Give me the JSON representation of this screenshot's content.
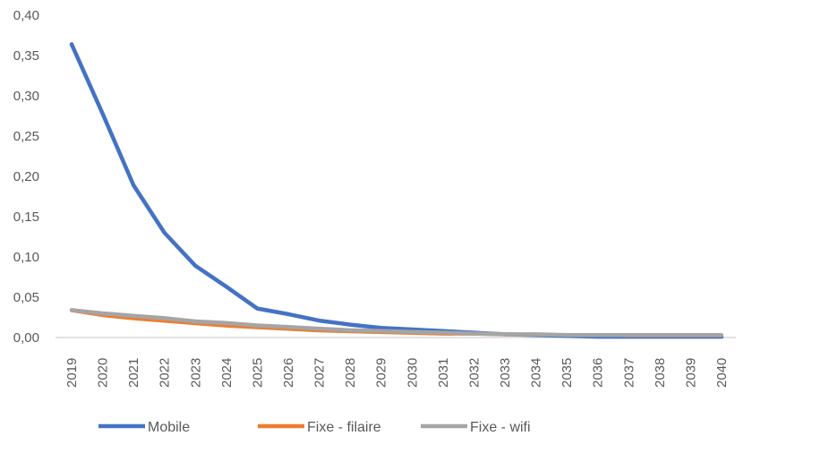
{
  "chart_data": {
    "type": "line",
    "title": "",
    "xlabel": "",
    "ylabel": "",
    "ylim": [
      0,
      0.4
    ],
    "y_ticks": [
      "0,00",
      "0,05",
      "0,10",
      "0,15",
      "0,20",
      "0,25",
      "0,30",
      "0,35",
      "0,40"
    ],
    "grid": false,
    "legend_position": "bottom",
    "categories": [
      "2019",
      "2020",
      "2021",
      "2022",
      "2023",
      "2024",
      "2025",
      "2026",
      "2027",
      "2028",
      "2029",
      "2030",
      "2031",
      "2032",
      "2033",
      "2034",
      "2035",
      "2036",
      "2037",
      "2038",
      "2039",
      "2040"
    ],
    "series": [
      {
        "name": "Mobile",
        "color": "#4472C4",
        "values": [
          0.364,
          0.278,
          0.189,
          0.13,
          0.089,
          0.063,
          0.036,
          0.029,
          0.021,
          0.016,
          0.012,
          0.01,
          0.008,
          0.006,
          0.004,
          0.003,
          0.002,
          0.001,
          0.001,
          0.001,
          0.001,
          0.001
        ]
      },
      {
        "name": "Fixe - filaire",
        "color": "#ED7D31",
        "values": [
          0.033,
          0.027,
          0.023,
          0.02,
          0.017,
          0.014,
          0.012,
          0.01,
          0.008,
          0.007,
          0.006,
          0.005,
          0.004,
          0.004,
          0.003,
          0.003,
          0.003,
          0.003,
          0.002,
          0.002,
          0.002,
          0.002
        ]
      },
      {
        "name": "Fixe - wifi",
        "color": "#A5A5A5",
        "values": [
          0.034,
          0.03,
          0.027,
          0.024,
          0.02,
          0.018,
          0.015,
          0.013,
          0.011,
          0.009,
          0.008,
          0.007,
          0.006,
          0.005,
          0.004,
          0.004,
          0.003,
          0.003,
          0.003,
          0.003,
          0.003,
          0.003
        ]
      }
    ]
  }
}
